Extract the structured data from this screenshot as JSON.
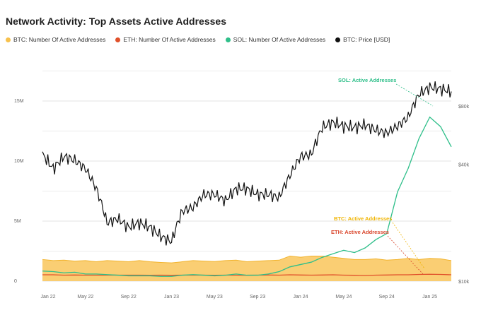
{
  "chart_data": {
    "type": "line",
    "title": "Network Activity: Top Assets Active Addresses",
    "legend": [
      {
        "label": "BTC: Number Of Active Addresses",
        "color": "#f7c14d"
      },
      {
        "label": "ETH: Number Of Active Addresses",
        "color": "#e0502a"
      },
      {
        "label": "SOL: Number Of Active Addresses",
        "color": "#2fbf8a"
      },
      {
        "label": "BTC: Price [USD]",
        "color": "#111111"
      }
    ],
    "x_ticks": [
      "Jan 22",
      "May 22",
      "Sep 22",
      "Jan 23",
      "May 23",
      "Sep 23",
      "Jan 24",
      "May 24",
      "Sep 24",
      "Jan 25"
    ],
    "y_left_ticks": [
      {
        "label": "0",
        "value": 0
      },
      {
        "label": "5M",
        "value": 5
      },
      {
        "label": "10M",
        "value": 10
      },
      {
        "label": "15M",
        "value": 15
      }
    ],
    "y_right_ticks": [
      {
        "label": "$10k",
        "value": 10
      },
      {
        "label": "$40k",
        "value": 40
      },
      {
        "label": "$80k",
        "value": 80
      }
    ],
    "ylim_left": [
      0,
      18
    ],
    "annotations": [
      {
        "label": "SOL: Active Addresses",
        "color": "#2fbf8a"
      },
      {
        "label": "BTC: Active Addresses",
        "color": "#f0b400"
      },
      {
        "label": "ETH: Active Addresses",
        "color": "#d9452b"
      }
    ],
    "x_months": [
      0,
      1,
      2,
      3,
      4,
      5,
      6,
      7,
      8,
      9,
      10,
      11,
      12,
      13,
      14,
      15,
      16,
      17,
      18,
      19,
      20,
      21,
      22,
      23,
      24,
      25,
      26,
      27,
      28,
      29,
      30,
      31,
      32,
      33,
      34,
      35,
      36,
      37,
      38
    ],
    "sol_millions": [
      0.85,
      0.8,
      0.7,
      0.75,
      0.6,
      0.6,
      0.55,
      0.5,
      0.45,
      0.45,
      0.45,
      0.4,
      0.4,
      0.5,
      0.55,
      0.5,
      0.45,
      0.5,
      0.6,
      0.5,
      0.5,
      0.6,
      0.8,
      1.2,
      1.4,
      1.6,
      2.0,
      2.3,
      2.6,
      2.4,
      2.8,
      3.5,
      4.0,
      7.5,
      9.5,
      12.0,
      13.8,
      13.0,
      11.3
    ],
    "btc_aa_millions": [
      0.95,
      0.9,
      0.92,
      0.88,
      0.9,
      0.85,
      0.9,
      0.88,
      0.85,
      0.9,
      0.85,
      0.82,
      0.8,
      0.85,
      0.9,
      0.88,
      0.86,
      0.9,
      0.92,
      0.85,
      0.88,
      0.9,
      0.92,
      1.1,
      1.05,
      1.1,
      1.1,
      1.05,
      1.0,
      0.95,
      0.95,
      0.98,
      0.92,
      0.95,
      1.0,
      0.95,
      1.0,
      0.98,
      0.9
    ],
    "eth_aa_millions": [
      0.55,
      0.55,
      0.5,
      0.52,
      0.5,
      0.5,
      0.52,
      0.5,
      0.5,
      0.5,
      0.48,
      0.5,
      0.48,
      0.5,
      0.5,
      0.5,
      0.48,
      0.5,
      0.5,
      0.48,
      0.5,
      0.52,
      0.5,
      0.55,
      0.52,
      0.5,
      0.52,
      0.55,
      0.5,
      0.48,
      0.45,
      0.5,
      0.52,
      0.55,
      0.55,
      0.6,
      0.62,
      0.6,
      0.55
    ],
    "btc_price_usd_k": [
      45,
      38,
      44,
      42,
      38,
      30,
      20,
      21,
      19,
      20,
      19,
      17,
      16,
      23,
      24,
      28,
      28,
      26,
      30,
      30,
      28,
      28,
      27,
      35,
      44,
      45,
      62,
      66,
      63,
      62,
      64,
      60,
      58,
      63,
      70,
      92,
      100,
      98,
      95
    ]
  }
}
